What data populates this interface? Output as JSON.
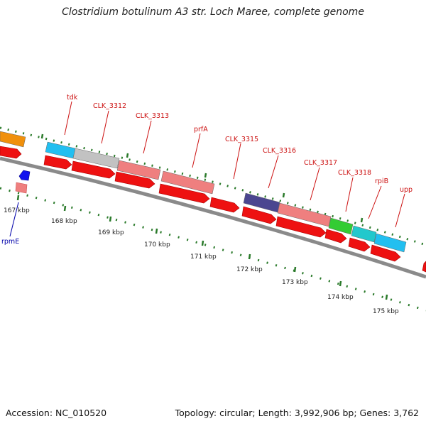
{
  "title": "Clostridium botulinum A3 str. Loch Maree, complete genome",
  "accession_label": "Accession: NC_010520",
  "topology_label": "Topology: circular; Length: 3,992,906 bp; Genes: 3,762",
  "colors": {
    "backbone": "#8a8a8a",
    "cds": "#ee1111",
    "tick": "#2a7a2a",
    "gene_label": "#cc1111",
    "gene_label_minus": "#0000aa"
  },
  "scale_labels": [
    "167 kbp",
    "168 kbp",
    "169 kbp",
    "170 kbp",
    "171 kbp",
    "172 kbp",
    "173 kbp",
    "174 kbp",
    "175 kbp"
  ],
  "genes": [
    {
      "label": "",
      "color": "#f0900c"
    },
    {
      "label": "tdk",
      "color": "#22bff0"
    },
    {
      "label": "CLK_3312",
      "color": "#c2c2c2"
    },
    {
      "label": "CLK_3313",
      "color": "#ef7f7f"
    },
    {
      "label": "prfA",
      "color": "#ef7f7f"
    },
    {
      "label": "CLK_3315",
      "color": "#4a4690"
    },
    {
      "label": "CLK_3316",
      "color": "#ef7f7f"
    },
    {
      "label": "CLK_3317",
      "color": "#33cc33"
    },
    {
      "label": "CLK_3318",
      "color": "#22c8cc"
    },
    {
      "label": "rpiB",
      "color": "#22bff0"
    },
    {
      "label": "upp",
      "color": "#ee1111"
    }
  ],
  "minus_genes": [
    {
      "label": "rpmE",
      "color": "#1111ee"
    }
  ]
}
